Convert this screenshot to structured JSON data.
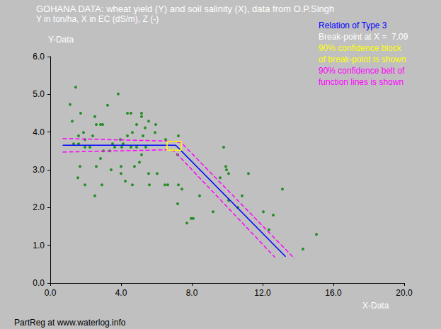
{
  "chart_data": {
    "type": "scatter",
    "title": "GOHANA DATA: wheat yield (Y) and soil salinity (X), data from O.P.Singh",
    "subtitle": "Y in ton/ha, X in EC (dS/m), Z (-)",
    "x_label": "X-Data",
    "y_label": "Y-Data",
    "footer": "PartReg at www.waterlog.info",
    "annotations": [
      {
        "text": "Relation of Type 3",
        "color": "#0000ff"
      },
      {
        "text": "Break-point at X =  7.09",
        "color": "#ffffff"
      },
      {
        "text": "90% confidence block",
        "color": "#ffff00"
      },
      {
        "text": "of break-point is shown",
        "color": "#ffff00"
      },
      {
        "text": "90% confidence belt of",
        "color": "#ff00ff"
      },
      {
        "text": "function lines is shown",
        "color": "#ff00ff"
      }
    ],
    "xlim": [
      0,
      20
    ],
    "xticks": [
      {
        "value": 0,
        "label": "0.0"
      },
      {
        "value": 4,
        "label": "4.0"
      },
      {
        "value": 8,
        "label": "8.0"
      },
      {
        "value": 12,
        "label": "12.0"
      },
      {
        "value": 16,
        "label": "16.0"
      },
      {
        "value": 20,
        "label": "20.0"
      }
    ],
    "ylim": [
      0,
      6
    ],
    "yticks": [
      {
        "value": 0,
        "label": "0.0"
      },
      {
        "value": 1,
        "label": "1.0"
      },
      {
        "value": 2,
        "label": "2.0"
      },
      {
        "value": 3,
        "label": "3.0"
      },
      {
        "value": 4,
        "label": "4.0"
      },
      {
        "value": 5,
        "label": "5.0"
      },
      {
        "value": 6,
        "label": "6.0"
      }
    ],
    "grid": false,
    "series": [
      {
        "type": "scatter",
        "color": "#008000",
        "marker": "circle",
        "x": [
          1.12,
          1.24,
          1.44,
          1.32,
          1.6,
          1.6,
          1.72,
          1.56,
          1.68,
          1.88,
          1.96,
          1.96,
          1.96,
          2.24,
          2.4,
          2.52,
          2.6,
          2.52,
          2.6,
          2.84,
          2.96,
          2.84,
          2.92,
          3.0,
          3.24,
          3.36,
          3.44,
          3.52,
          3.64,
          3.84,
          3.96,
          4.0,
          4.0,
          4.04,
          4.24,
          4.12,
          4.36,
          4.56,
          4.36,
          4.56,
          4.64,
          4.76,
          4.64,
          4.88,
          4.88,
          5.04,
          5.16,
          5.24,
          5.16,
          5.16,
          5.36,
          5.6,
          5.4,
          5.56,
          5.96,
          5.92,
          5.56,
          6.04,
          6.52,
          6.64,
          6.48,
          7.24,
          7.2,
          7.24,
          7.44,
          7.2,
          7.72,
          7.96,
          8.08,
          8.44,
          9.2,
          9.6,
          9.8,
          9.96,
          9.92,
          10.08,
          10.08,
          10.6,
          10.84,
          11.2,
          12.04,
          12.36,
          12.6,
          13.12,
          14.28,
          15.04
        ],
        "values": [
          4.73,
          4.29,
          5.19,
          3.69,
          3.69,
          3.9,
          4.5,
          2.79,
          3.09,
          3.99,
          3.8,
          3.6,
          2.6,
          3.6,
          3.9,
          4.41,
          4.2,
          2.31,
          3.09,
          4.2,
          4.2,
          3.3,
          2.6,
          3.5,
          4.71,
          3.5,
          3.0,
          3.69,
          3.6,
          5.01,
          3.8,
          3.09,
          2.9,
          3.6,
          2.7,
          3.69,
          4.5,
          4.5,
          3.9,
          3.6,
          3.99,
          3.09,
          2.6,
          4.2,
          3.6,
          3.2,
          4.41,
          3.9,
          4.5,
          3.4,
          4.11,
          2.6,
          3.6,
          4.29,
          4.2,
          3.99,
          2.9,
          2.9,
          3.8,
          2.6,
          2.6,
          3.9,
          3.4,
          2.6,
          2.49,
          2.1,
          1.59,
          1.71,
          1.71,
          2.31,
          1.89,
          2.79,
          3.6,
          3.0,
          3.09,
          2.9,
          2.19,
          2.0,
          2.31,
          2.9,
          1.89,
          1.41,
          1.8,
          2.49,
          0.9,
          1.29
        ]
      },
      {
        "type": "line",
        "color": "#0000ff",
        "line_style": "solid",
        "x": [
          0.7,
          7.09,
          13.3
        ],
        "values": [
          3.65,
          3.65,
          0.7
        ]
      },
      {
        "type": "line",
        "color": "#ff00ff",
        "line_style": "dashed",
        "x": [
          0.7,
          6.8,
          7.4,
          13.8
        ],
        "values": [
          3.83,
          3.76,
          3.72,
          0.65
        ]
      },
      {
        "type": "line",
        "color": "#ff00ff",
        "line_style": "dashed",
        "x": [
          0.7,
          6.6,
          7.0,
          12.7
        ],
        "values": [
          3.47,
          3.53,
          3.5,
          0.68
        ]
      }
    ],
    "break_point_block": {
      "x": [
        6.6,
        7.4
      ],
      "y": [
        3.52,
        3.75
      ],
      "color": "#ffff00"
    }
  }
}
